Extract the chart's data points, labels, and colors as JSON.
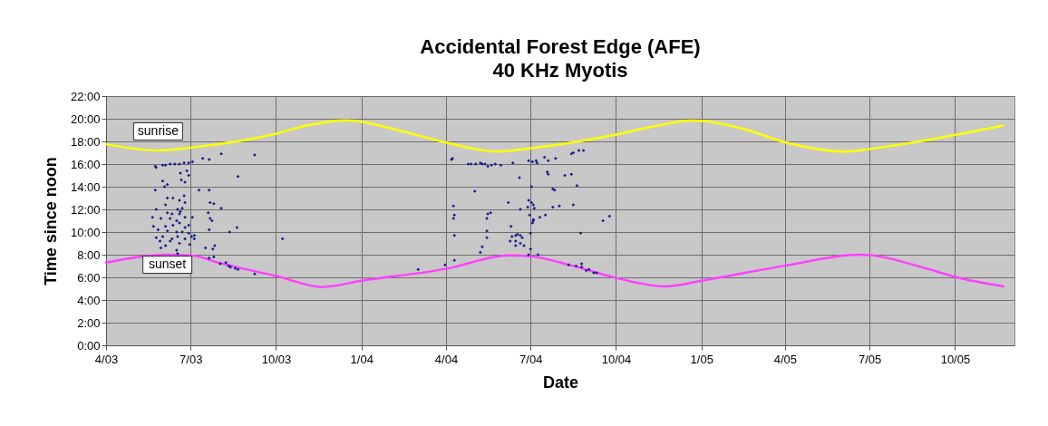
{
  "chart_data": {
    "type": "scatter",
    "title": "Accidental Forest Edge (AFE)",
    "subtitle": "40 KHz Myotis",
    "xlabel": "Date",
    "ylabel": "Time since noon",
    "xlim": [
      "2003-04-01",
      "2005-12-04"
    ],
    "xticks": [
      {
        "value": "2003-04-01",
        "label": "4/03"
      },
      {
        "value": "2003-07-01",
        "label": "7/03"
      },
      {
        "value": "2003-10-01",
        "label": "10/03"
      },
      {
        "value": "2004-01-01",
        "label": "1/04"
      },
      {
        "value": "2004-04-01",
        "label": "4/04"
      },
      {
        "value": "2004-07-01",
        "label": "7/04"
      },
      {
        "value": "2004-10-01",
        "label": "10/04"
      },
      {
        "value": "2005-01-01",
        "label": "1/05"
      },
      {
        "value": "2005-04-01",
        "label": "4/05"
      },
      {
        "value": "2005-07-01",
        "label": "7/05"
      },
      {
        "value": "2005-10-01",
        "label": "10/05"
      }
    ],
    "ylim": [
      0,
      22
    ],
    "yticks": [
      {
        "value": 0,
        "label": "0:00"
      },
      {
        "value": 2,
        "label": "2:00"
      },
      {
        "value": 4,
        "label": "4:00"
      },
      {
        "value": 6,
        "label": "6:00"
      },
      {
        "value": 8,
        "label": "8:00"
      },
      {
        "value": 10,
        "label": "10:00"
      },
      {
        "value": 12,
        "label": "12:00"
      },
      {
        "value": 14,
        "label": "14:00"
      },
      {
        "value": 16,
        "label": "16:00"
      },
      {
        "value": 18,
        "label": "18:00"
      },
      {
        "value": 20,
        "label": "20:00"
      },
      {
        "value": 22,
        "label": "22:00"
      }
    ],
    "grid": true,
    "series": [
      {
        "name": "sunrise",
        "type": "line",
        "color": "#ffff00",
        "x": [
          "2003-04-01",
          "2003-05-27",
          "2003-07-01",
          "2003-10-02",
          "2003-11-03",
          "2003-12-17",
          "2004-02-09",
          "2004-04-01",
          "2004-05-27",
          "2004-07-02",
          "2004-10-01",
          "2004-11-09",
          "2004-12-23",
          "2005-02-15",
          "2005-04-02",
          "2005-06-05",
          "2005-07-03",
          "2005-10-03",
          "2005-11-22"
        ],
        "values": [
          17.75,
          17.2,
          17.45,
          18.7,
          19.4,
          19.86,
          19.0,
          17.9,
          17.1,
          17.4,
          18.6,
          19.3,
          19.84,
          19.1,
          17.9,
          17.1,
          17.35,
          18.6,
          19.4
        ]
      },
      {
        "name": "sunset",
        "type": "line",
        "color": "#ff40ff",
        "x": [
          "2003-04-01",
          "2003-06-06",
          "2003-07-01",
          "2003-07-31",
          "2003-10-02",
          "2003-11-20",
          "2004-01-01",
          "2004-04-01",
          "2004-06-08",
          "2004-07-02",
          "2004-08-13",
          "2004-10-01",
          "2004-11-23",
          "2005-01-01",
          "2005-04-02",
          "2005-06-19",
          "2005-07-03",
          "2005-08-22",
          "2005-10-03",
          "2005-11-22"
        ],
        "values": [
          7.3,
          8.0,
          7.95,
          7.3,
          6.1,
          5.15,
          5.7,
          6.75,
          7.95,
          7.85,
          7.07,
          5.95,
          5.2,
          5.7,
          7.05,
          8.0,
          7.95,
          7.0,
          6.0,
          5.2
        ]
      },
      {
        "type": "scatter",
        "marker": "diamond",
        "color": "#1c1c8c",
        "x": [
          "2003-05-24",
          "2003-05-25",
          "2003-06-01",
          "2003-06-04",
          "2003-06-09",
          "2003-06-14",
          "2003-06-19",
          "2003-06-24",
          "2003-06-29",
          "2003-07-03",
          "2003-07-14",
          "2003-07-21",
          "2003-08-03",
          "2003-09-08",
          "2003-06-27",
          "2003-06-20",
          "2003-06-29",
          "2003-06-21",
          "2003-06-25",
          "2003-06-01",
          "2003-06-06",
          "2003-06-03",
          "2003-05-24",
          "2003-07-10",
          "2003-07-21",
          "2003-08-21",
          "2003-06-06",
          "2003-06-12",
          "2003-06-24",
          "2003-06-19",
          "2003-06-25",
          "2003-07-22",
          "2003-07-26",
          "2003-08-03",
          "2003-05-25",
          "2003-06-04",
          "2003-06-06",
          "2003-06-11",
          "2003-06-17",
          "2003-06-22",
          "2003-06-20",
          "2003-06-19",
          "2003-05-21",
          "2003-05-30",
          "2003-06-09",
          "2003-06-16",
          "2003-06-25",
          "2003-07-03",
          "2003-07-20",
          "2003-07-22",
          "2003-07-24",
          "2003-05-22",
          "2003-06-04",
          "2003-06-12",
          "2003-06-19",
          "2003-06-25",
          "2003-06-29",
          "2003-05-27",
          "2003-06-06",
          "2003-06-16",
          "2003-06-22",
          "2003-06-29",
          "2003-07-05",
          "2003-07-21",
          "2003-08-12",
          "2003-08-20",
          "2003-10-08",
          "2003-05-25",
          "2003-06-01",
          "2003-06-11",
          "2003-06-17",
          "2003-06-25",
          "2003-07-02",
          "2003-07-05",
          "2003-05-29",
          "2003-06-09",
          "2003-06-19",
          "2003-06-30",
          "2003-05-30",
          "2003-06-04",
          "2003-06-16",
          "2003-06-17",
          "2003-07-17",
          "2003-07-25",
          "2003-07-27",
          "2003-07-21",
          "2003-07-26",
          "2003-08-02",
          "2003-08-08",
          "2003-08-11",
          "2003-08-13",
          "2003-08-18",
          "2003-08-21",
          "2003-09-08",
          "2004-03-02",
          "2004-03-31",
          "2004-04-10",
          "2004-04-07",
          "2004-04-08",
          "2004-04-25",
          "2004-04-28",
          "2004-05-03",
          "2004-05-08",
          "2004-05-10",
          "2004-05-13",
          "2004-05-16",
          "2004-05-20",
          "2004-05-24",
          "2004-05-30",
          "2004-06-12",
          "2004-06-29",
          "2004-07-03",
          "2004-07-07",
          "2004-07-08",
          "2004-07-16",
          "2004-07-20",
          "2004-07-28",
          "2004-06-19",
          "2004-07-19",
          "2004-07-20",
          "2004-08-07",
          "2004-08-14",
          "2004-08-14",
          "2004-08-16",
          "2004-08-22",
          "2004-08-27",
          "2004-05-02",
          "2004-07-02",
          "2004-07-25",
          "2004-07-27",
          "2004-08-20",
          "2004-04-09",
          "2004-06-07",
          "2004-06-20",
          "2004-06-28",
          "2004-06-29",
          "2004-07-02",
          "2004-07-04",
          "2004-07-05",
          "2004-07-25",
          "2004-08-01",
          "2004-08-16",
          "2004-04-10",
          "2004-04-09",
          "2004-05-16",
          "2004-05-19",
          "2004-05-15",
          "2004-06-30",
          "2004-07-11",
          "2004-07-17",
          "2004-07-04",
          "2004-07-03",
          "2004-07-04",
          "2004-09-17",
          "2004-09-24",
          "2004-04-10",
          "2004-05-15",
          "2004-05-15",
          "2004-06-10",
          "2004-06-11",
          "2004-06-15",
          "2004-06-17",
          "2004-06-20",
          "2004-06-22",
          "2004-06-09",
          "2004-06-15",
          "2004-06-20",
          "2004-06-15",
          "2004-06-24",
          "2004-07-01",
          "2004-08-24",
          "2004-05-10",
          "2004-05-08",
          "2004-07-01",
          "2004-06-29",
          "2004-07-09",
          "2004-08-11",
          "2004-08-19",
          "2004-08-25",
          "2004-08-25",
          "2004-08-30",
          "2004-09-02",
          "2004-09-07",
          "2004-09-10"
        ],
        "values": [
          15.8,
          15.7,
          15.9,
          15.9,
          16.0,
          16.0,
          16.0,
          16.1,
          16.1,
          16.2,
          16.5,
          16.4,
          16.9,
          16.8,
          15.4,
          15.2,
          15.0,
          14.6,
          14.4,
          14.5,
          14.2,
          14.0,
          13.7,
          13.7,
          13.7,
          14.9,
          13.0,
          13.0,
          13.2,
          12.8,
          12.6,
          12.6,
          12.5,
          12.1,
          12.0,
          12.4,
          11.7,
          11.6,
          12.0,
          12.1,
          11.8,
          11.6,
          11.3,
          11.2,
          11.2,
          11.0,
          11.3,
          11.3,
          11.7,
          11.2,
          11.0,
          10.5,
          10.5,
          10.6,
          10.8,
          10.4,
          10.6,
          10.2,
          10.1,
          10.0,
          10.0,
          9.9,
          9.7,
          10.2,
          10.0,
          10.4,
          9.4,
          9.5,
          9.6,
          9.4,
          9.6,
          9.4,
          9.6,
          9.4,
          9.2,
          9.2,
          9.0,
          8.9,
          8.6,
          8.8,
          8.4,
          8.1,
          8.6,
          8.5,
          8.8,
          7.7,
          7.8,
          7.2,
          7.3,
          7.0,
          6.9,
          6.8,
          6.7,
          6.3,
          6.7,
          7.1,
          7.5,
          16.4,
          16.5,
          16.0,
          16.0,
          16.0,
          16.1,
          16.0,
          16.0,
          15.8,
          15.9,
          16.0,
          15.9,
          16.1,
          16.3,
          16.2,
          16.3,
          16.1,
          16.6,
          16.3,
          16.5,
          14.8,
          15.3,
          15.1,
          15.0,
          15.1,
          16.9,
          17.0,
          17.2,
          17.2,
          13.6,
          14.0,
          13.8,
          13.7,
          14.1,
          12.3,
          12.6,
          12.0,
          12.2,
          12.8,
          12.6,
          12.4,
          12.1,
          12.2,
          12.3,
          12.4,
          11.5,
          11.2,
          11.6,
          11.7,
          11.2,
          11.5,
          11.3,
          11.5,
          11.1,
          10.8,
          11.0,
          11.0,
          11.4,
          9.7,
          10.1,
          9.5,
          10.5,
          9.6,
          9.7,
          9.8,
          9.7,
          9.5,
          9.2,
          9.2,
          9.0,
          8.8,
          8.8,
          9.9,
          9.9,
          8.7,
          8.2,
          8.5,
          8.0,
          8.0,
          7.1,
          7.0,
          7.2,
          6.9,
          6.6,
          6.7,
          6.4,
          6.4
        ]
      }
    ]
  }
}
